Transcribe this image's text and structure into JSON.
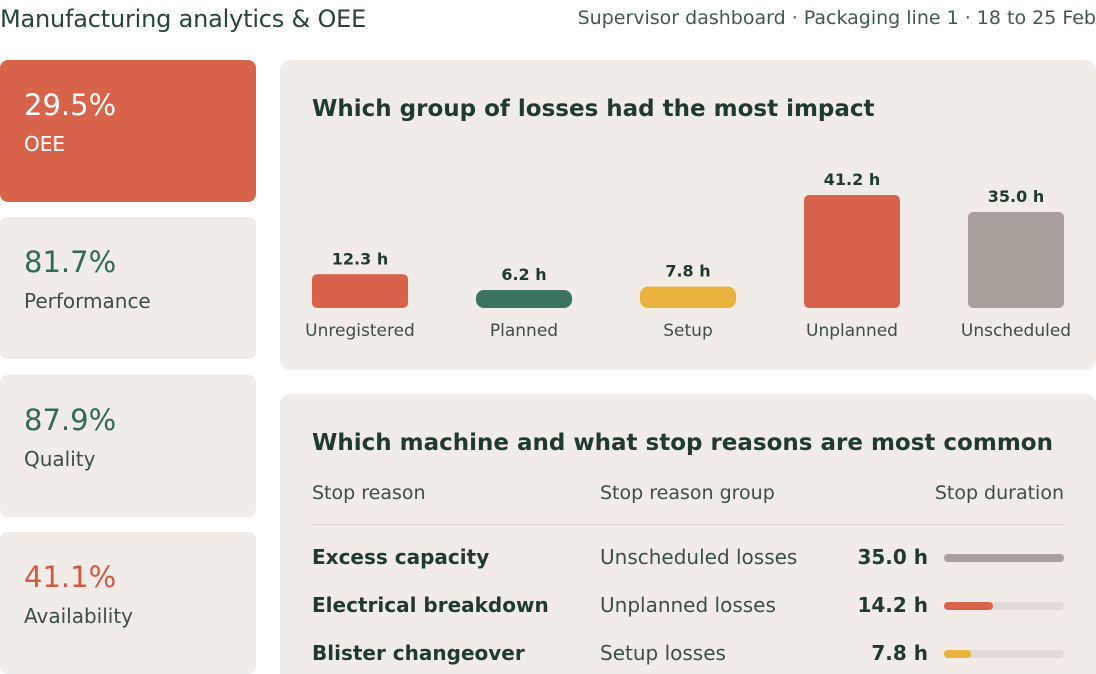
{
  "header": {
    "title": "Manufacturing analytics & OEE",
    "subtitle": "Supervisor dashboard · Packaging line 1 · 18 to 25 Feb"
  },
  "kpis": {
    "oee": {
      "value": "29.5%",
      "label": "OEE"
    },
    "performance": {
      "value": "81.7%",
      "label": "Performance"
    },
    "quality": {
      "value": "87.9%",
      "label": "Quality"
    },
    "availability": {
      "value": "41.1%",
      "label": "Availability"
    }
  },
  "colors": {
    "red": "#d6634a",
    "green": "#3b7560",
    "yellow": "#e8b23c",
    "grey": "#aaa19d",
    "card": "#f2ece9"
  },
  "losses": {
    "title": "Which group of losses had the most impact"
  },
  "chart_data": {
    "type": "bar",
    "categories": [
      "Unregistered",
      "Planned",
      "Setup",
      "Unplanned",
      "Unscheduled"
    ],
    "values": [
      12.3,
      6.2,
      7.8,
      41.2,
      35.0
    ],
    "data_labels": [
      "12.3 h",
      "6.2 h",
      "7.8 h",
      "41.2 h",
      "35.0 h"
    ],
    "colors": [
      "#d6634a",
      "#3b7560",
      "#e8b23c",
      "#d6634a",
      "#aaa19d"
    ],
    "unit": "h",
    "title": "",
    "xlabel": "",
    "ylabel": "",
    "grid": false
  },
  "stops": {
    "title": "Which machine and what stop reasons are most common",
    "columns": {
      "reason": "Stop reason",
      "group": "Stop reason group",
      "duration": "Stop duration"
    },
    "rows": [
      {
        "reason": "Excess capacity",
        "group": "Unscheduled losses",
        "duration": "35.0 h",
        "fraction": 1.0,
        "color": "#aaa19d"
      },
      {
        "reason": "Electrical breakdown",
        "group": "Unplanned losses",
        "duration": "14.2 h",
        "fraction": 0.406,
        "color": "#d6634a"
      },
      {
        "reason": "Blister changeover",
        "group": "Setup losses",
        "duration": "7.8 h",
        "fraction": 0.223,
        "color": "#e8b23c"
      }
    ]
  }
}
